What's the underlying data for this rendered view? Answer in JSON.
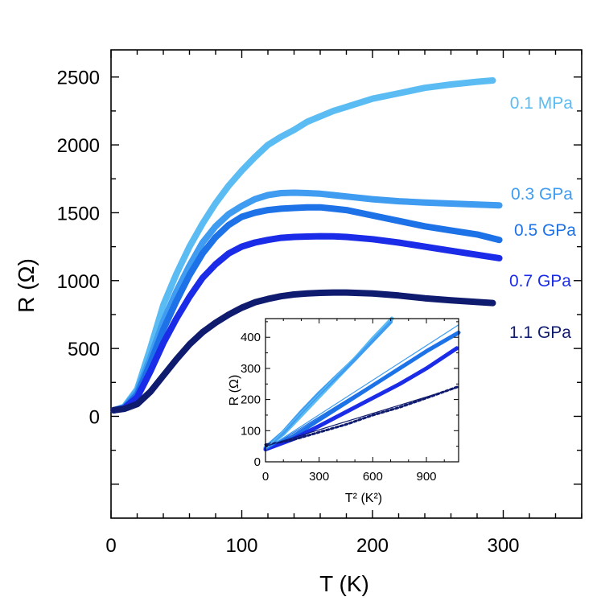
{
  "chart_data": [
    {
      "type": "line",
      "title": "",
      "xlabel": "T (K)",
      "ylabel": "R (Ω)",
      "xlim": [
        0,
        360
      ],
      "ylim": [
        -750,
        2700
      ],
      "xticks": [
        0,
        100,
        200,
        300
      ],
      "yticks": [
        0,
        500,
        1000,
        1500,
        2000,
        2500
      ],
      "grid": false,
      "series": [
        {
          "name": "0.1 MPa",
          "color": "#5bbcf3",
          "x": [
            2,
            10,
            20,
            30,
            40,
            50,
            60,
            70,
            80,
            90,
            100,
            110,
            120,
            130,
            140,
            150,
            160,
            170,
            180,
            200,
            220,
            240,
            260,
            280,
            292
          ],
          "y": [
            45,
            70,
            200,
            500,
            820,
            1050,
            1250,
            1420,
            1570,
            1700,
            1810,
            1910,
            2000,
            2060,
            2110,
            2170,
            2210,
            2250,
            2280,
            2340,
            2380,
            2420,
            2445,
            2465,
            2475
          ]
        },
        {
          "name": "0.3 GPa",
          "color": "#3f9cf0",
          "x": [
            2,
            10,
            20,
            30,
            40,
            50,
            60,
            70,
            80,
            90,
            100,
            110,
            120,
            130,
            140,
            150,
            160,
            170,
            180,
            200,
            220,
            240,
            260,
            280,
            297
          ],
          "y": [
            45,
            65,
            180,
            430,
            700,
            920,
            1110,
            1280,
            1400,
            1490,
            1550,
            1600,
            1630,
            1645,
            1648,
            1645,
            1640,
            1630,
            1620,
            1600,
            1585,
            1575,
            1568,
            1560,
            1555
          ]
        },
        {
          "name": "0.5 GPa",
          "color": "#1d72e8",
          "x": [
            2,
            10,
            20,
            30,
            40,
            50,
            60,
            70,
            80,
            90,
            100,
            110,
            120,
            130,
            140,
            150,
            160,
            170,
            180,
            200,
            220,
            240,
            260,
            280,
            297
          ],
          "y": [
            45,
            60,
            160,
            390,
            640,
            850,
            1040,
            1200,
            1320,
            1410,
            1470,
            1500,
            1520,
            1530,
            1535,
            1540,
            1540,
            1530,
            1520,
            1480,
            1440,
            1400,
            1370,
            1340,
            1300
          ]
        },
        {
          "name": "0.7 GPa",
          "color": "#1b2ce8",
          "x": [
            2,
            10,
            20,
            30,
            40,
            50,
            60,
            70,
            80,
            90,
            100,
            110,
            120,
            130,
            140,
            150,
            160,
            170,
            180,
            200,
            220,
            240,
            260,
            280,
            297
          ],
          "y": [
            45,
            60,
            140,
            330,
            540,
            720,
            880,
            1020,
            1120,
            1200,
            1250,
            1280,
            1300,
            1315,
            1322,
            1325,
            1327,
            1326,
            1322,
            1305,
            1280,
            1250,
            1220,
            1190,
            1165
          ]
        },
        {
          "name": "1.1 GPa",
          "color": "#0f1b6e",
          "x": [
            2,
            10,
            20,
            30,
            40,
            50,
            60,
            70,
            80,
            90,
            100,
            110,
            120,
            130,
            140,
            150,
            160,
            170,
            180,
            200,
            220,
            240,
            260,
            280,
            292
          ],
          "y": [
            45,
            55,
            90,
            180,
            300,
            420,
            530,
            620,
            690,
            750,
            800,
            840,
            865,
            885,
            898,
            905,
            910,
            912,
            912,
            905,
            890,
            870,
            855,
            842,
            835
          ]
        }
      ]
    },
    {
      "type": "line",
      "title": "",
      "xlabel": "T² (K²)",
      "ylabel": "R (Ω)",
      "xlim": [
        0,
        1080
      ],
      "ylim": [
        0,
        460
      ],
      "xticks": [
        0,
        300,
        600,
        900
      ],
      "yticks": [
        0,
        100,
        200,
        300,
        400
      ],
      "grid": false,
      "series": [
        {
          "color": "#5bbcf3",
          "x": [
            0,
            100,
            200,
            300,
            400,
            500,
            600,
            700,
            720
          ],
          "y": [
            45,
            90,
            150,
            210,
            270,
            330,
            395,
            455,
            470
          ]
        },
        {
          "color": "#3f9cf0",
          "x": [
            0,
            100,
            200,
            300,
            400,
            500,
            600,
            700
          ],
          "y": [
            45,
            95,
            160,
            220,
            275,
            330,
            390,
            450
          ]
        },
        {
          "color": "#1d72e8",
          "x": [
            0,
            150,
            300,
            450,
            600,
            750,
            900,
            1080
          ],
          "y": [
            40,
            80,
            135,
            190,
            245,
            300,
            355,
            415
          ]
        },
        {
          "color": "#1b2ce8",
          "x": [
            0,
            150,
            300,
            450,
            600,
            750,
            900,
            1070
          ],
          "y": [
            40,
            72,
            115,
            160,
            205,
            250,
            300,
            365
          ]
        },
        {
          "color": "#0f1b6e",
          "x": [
            0,
            150,
            300,
            450,
            600,
            750,
            900,
            1080
          ],
          "y": [
            55,
            70,
            95,
            120,
            150,
            175,
            205,
            242
          ]
        }
      ],
      "fit_lines": [
        {
          "color": "#5bbcf3",
          "x": [
            0,
            730
          ],
          "y": [
            40,
            475
          ]
        },
        {
          "color": "#3f9cf0",
          "x": [
            0,
            1080
          ],
          "y": [
            40,
            440
          ]
        },
        {
          "color": "#1d72e8",
          "x": [
            0,
            1080
          ],
          "y": [
            38,
            420
          ]
        },
        {
          "color": "#0f1b6e",
          "x": [
            0,
            1080
          ],
          "y": [
            50,
            240
          ]
        }
      ]
    }
  ]
}
